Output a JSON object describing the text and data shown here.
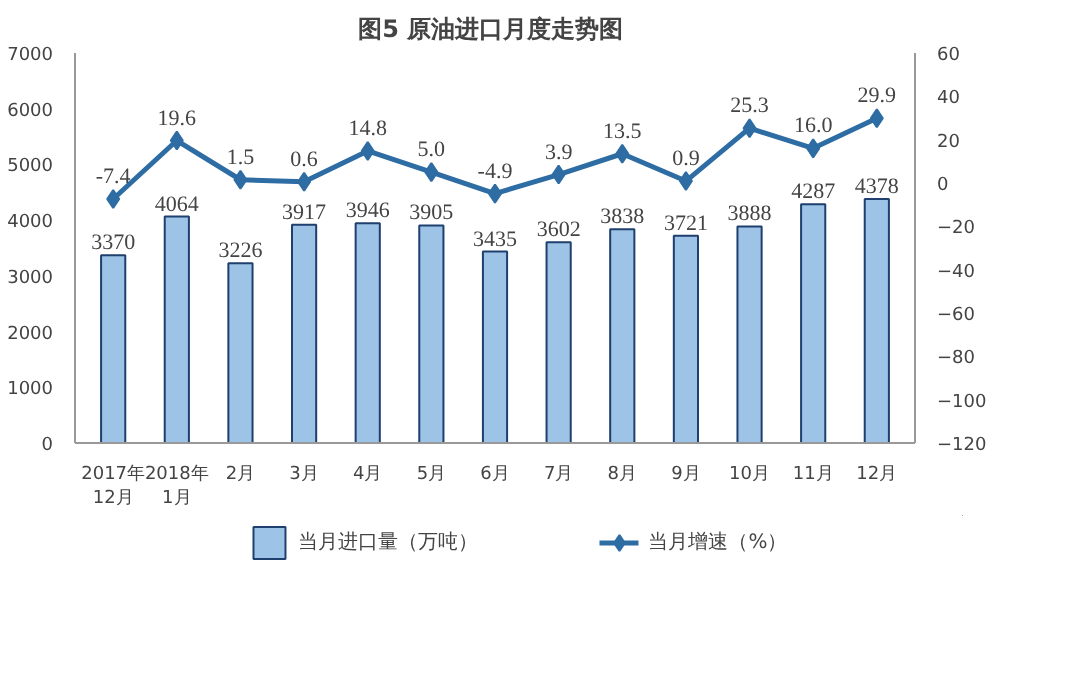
{
  "chart_data": {
    "type": "bar",
    "title": "图5  原油进口月度走势图",
    "categories": [
      "2017年\n12月",
      "2018年\n1月",
      "2月",
      "3月",
      "4月",
      "5月",
      "6月",
      "7月",
      "8月",
      "9月",
      "10月",
      "11月",
      "12月"
    ],
    "series": [
      {
        "name": "当月进口量（万吨）",
        "color": "#9dc3e6",
        "values": [
          3370,
          4064,
          3226,
          3917,
          3946,
          3905,
          3435,
          3602,
          3838,
          3721,
          3888,
          4287,
          4378
        ]
      },
      {
        "name": "当月增速（%）",
        "type": "line",
        "axis": "y2",
        "color": "#2e6ca4",
        "values": [
          -7.4,
          19.6,
          1.5,
          0.6,
          14.8,
          5.0,
          -4.9,
          3.9,
          13.5,
          0.9,
          25.3,
          16.0,
          29.9
        ],
        "value_labels": [
          "-7.4",
          "19.6",
          "1.5",
          "0.6",
          "14.8",
          "5.0",
          "-4.9",
          "3.9",
          "13.5",
          "0.9",
          "25.3",
          "16.0",
          "29.9"
        ]
      }
    ],
    "ylim": [
      0,
      7000
    ],
    "yticks": [
      0,
      1000,
      2000,
      3000,
      4000,
      5000,
      6000,
      7000
    ],
    "y2lim": [
      -120,
      60
    ],
    "y2ticks": [
      -120,
      -100,
      -80,
      -60,
      -40,
      -20,
      0,
      20,
      40,
      60
    ],
    "data_labels": true,
    "marker": "diamond",
    "grid": false,
    "legend": "bottom"
  }
}
